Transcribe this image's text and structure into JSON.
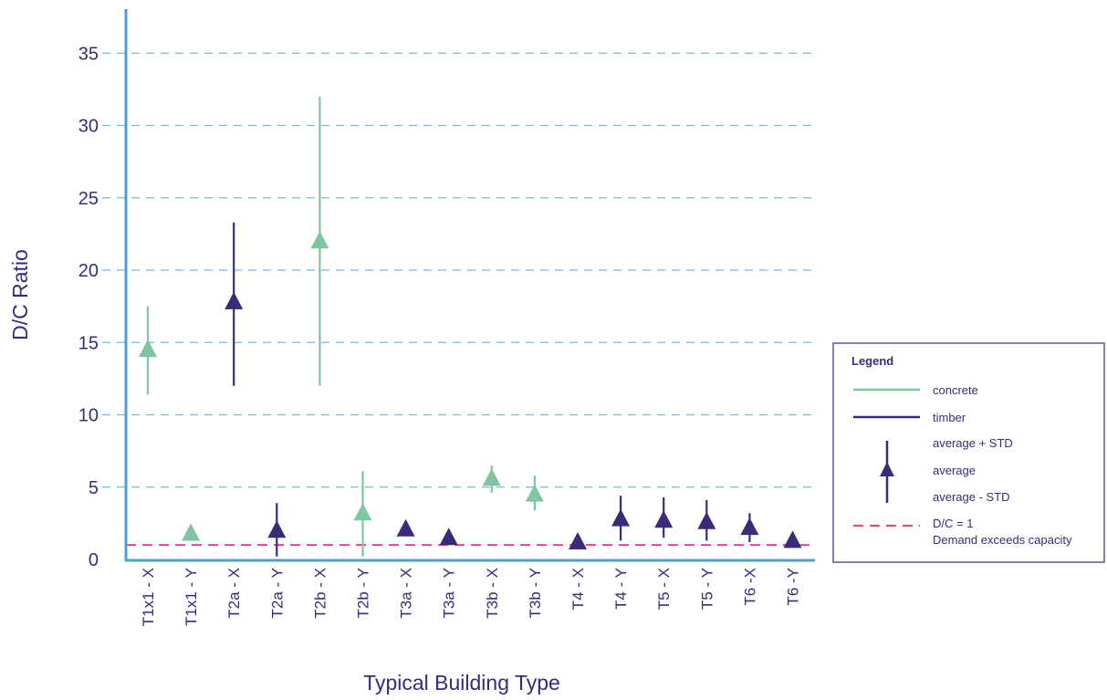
{
  "chart_data": {
    "type": "scatter",
    "title": "",
    "xlabel": "Typical Building Type",
    "ylabel": "D/C Ratio",
    "ylim": [
      0,
      38
    ],
    "yticks": [
      0,
      5,
      10,
      15,
      20,
      25,
      30,
      35
    ],
    "grid": "horizontal dashed",
    "categories": [
      "T1x1 - X",
      "T1x1 - Y",
      "T2a - X",
      "T2a - Y",
      "T2b - X",
      "T2b - Y",
      "T3a - X",
      "T3a - Y",
      "T3b - X",
      "T3b - Y",
      "T4 - X",
      "T4 - Y",
      "T5 - X",
      "T5 - Y",
      "T6 -X",
      "T6 -Y"
    ],
    "materials": [
      "concrete",
      "concrete",
      "timber",
      "timber",
      "concrete",
      "concrete",
      "timber",
      "timber",
      "concrete",
      "concrete",
      "timber",
      "timber",
      "timber",
      "timber",
      "timber",
      "timber"
    ],
    "average": [
      14.5,
      1.8,
      17.8,
      2.0,
      22.0,
      3.2,
      2.1,
      1.5,
      5.6,
      4.5,
      1.2,
      2.8,
      2.7,
      2.6,
      2.2,
      1.3
    ],
    "average_plus_std": [
      17.5,
      1.8,
      23.3,
      3.9,
      32.0,
      6.1,
      2.1,
      1.5,
      6.5,
      5.8,
      1.2,
      4.4,
      4.3,
      4.1,
      3.2,
      1.3
    ],
    "average_minus_std": [
      11.4,
      1.8,
      12.0,
      0.2,
      12.0,
      0.2,
      2.1,
      1.5,
      4.6,
      3.4,
      1.2,
      1.3,
      1.5,
      1.3,
      1.2,
      1.3
    ],
    "reference_line": {
      "value": 1,
      "label_line1": "D/C = 1",
      "label_line2": "Demand exceeds capacity"
    },
    "legend": {
      "title": "Legend",
      "placement": "right",
      "concrete_label": "concrete",
      "timber_label": "timber",
      "plus_std_label": "average + STD",
      "average_label": "average",
      "minus_std_label": "average - STD"
    },
    "colors": {
      "concrete": "#7fc6a0",
      "timber": "#3b2a7a",
      "axis": "#4a9fd6",
      "grid": "#7ab8e2",
      "reference": "#e0477a",
      "text": "#3b2a7a"
    }
  }
}
